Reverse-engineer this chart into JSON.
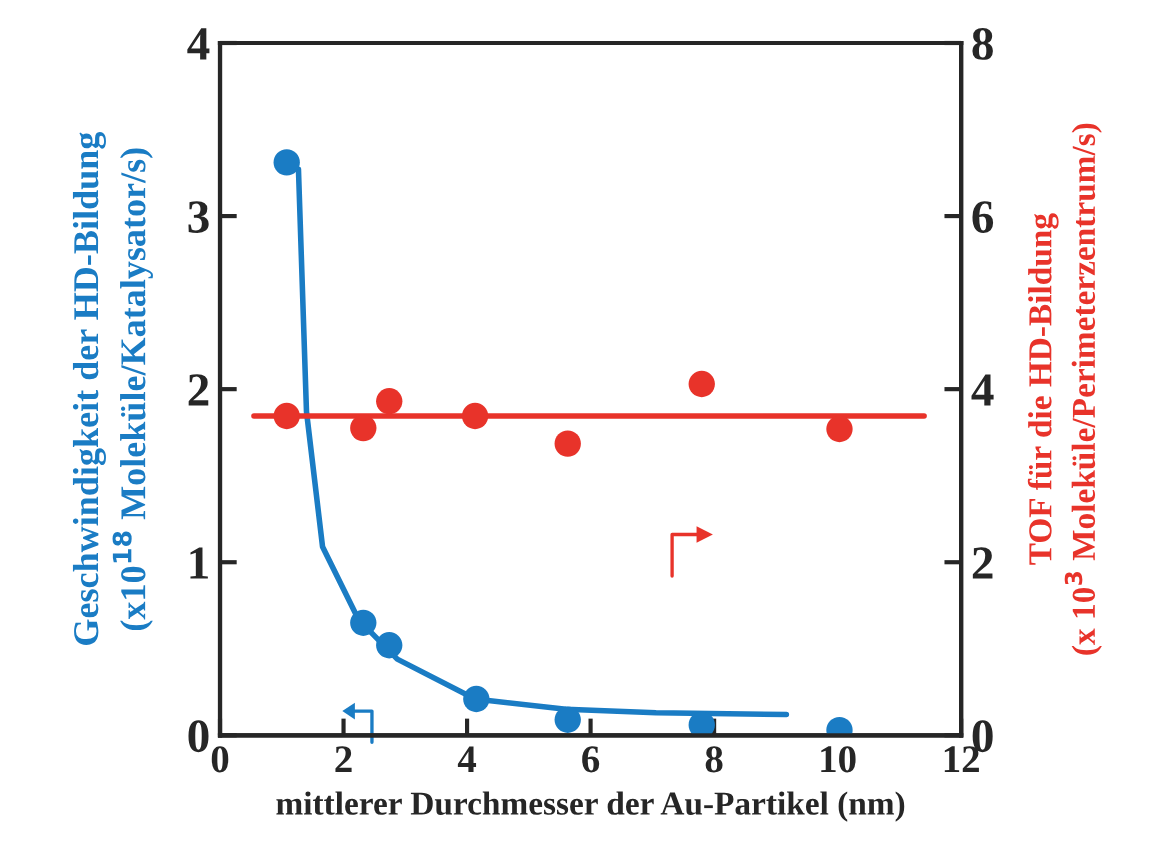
{
  "chart_data": {
    "type": "scatter",
    "xlabel": "mittlerer Durchmesser der Au-Partikel (nm)",
    "ylabel": "Geschwindigkeit der HD-Bildung\n(x10$^{18}$ Moleküle/Katalysator/s)",
    "y2label": "TOF für die HD-Bildung\n(x 10$^{3}$ Moleküle/Perimeterzentrum/s)",
    "xlim": [
      0,
      12
    ],
    "xticks": [
      0,
      2,
      4,
      6,
      8,
      10,
      12
    ],
    "ylim": [
      0,
      4
    ],
    "yticks": [
      0,
      1,
      2,
      3,
      4
    ],
    "y2lim": [
      0,
      8
    ],
    "y2ticks": [
      0,
      2,
      4,
      6,
      8
    ],
    "grid": false,
    "legend": false,
    "marker": "circle",
    "series": [
      {
        "color": "#1a7cc4",
        "x": [
          1.08,
          2.32,
          2.74,
          4.15,
          5.63,
          7.8,
          10.03
        ],
        "values": [
          3.31,
          0.65,
          0.52,
          0.21,
          0.09,
          0.06,
          0.03
        ]
      },
      {
        "type": "line",
        "color": "#1a7cc4",
        "marker": "none",
        "line_style": "solid",
        "x": [
          1.27,
          1.4,
          1.66,
          2.24,
          2.87,
          4.13,
          5.6,
          7.06,
          9.17
        ],
        "values": [
          3.27,
          1.87,
          1.09,
          0.67,
          0.44,
          0.21,
          0.15,
          0.13,
          0.12
        ]
      },
      {
        "axis": "y2",
        "color": "#e8332a",
        "x": [
          1.08,
          2.32,
          2.74,
          4.13,
          5.63,
          7.8,
          10.03
        ],
        "values": [
          3.69,
          3.55,
          3.86,
          3.69,
          3.37,
          4.06,
          3.54
        ]
      },
      {
        "type": "line",
        "axis": "y2",
        "color": "#e8332a",
        "marker": "none",
        "line_style": "solid",
        "x": [
          0.55,
          11.4
        ],
        "values": [
          3.69,
          3.69
        ]
      }
    ]
  }
}
